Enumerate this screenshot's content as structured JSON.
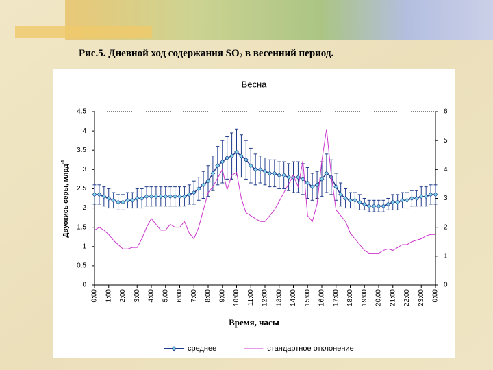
{
  "slide_title": {
    "before": "Рис.5. Дневной ход содержания SO",
    "subscript": "2",
    "after": " в весенний период."
  },
  "chart_data": {
    "type": "line",
    "title": "Весна",
    "xlabel": "Время, часы",
    "ylabel": "Двуокись серы, млрд",
    "ylabel_superscript": "-1",
    "categories": [
      "0:00",
      null,
      null,
      "1:00",
      null,
      null,
      "2:00",
      null,
      null,
      "3:00",
      null,
      null,
      "4:00",
      null,
      null,
      "5:00",
      null,
      null,
      "6:00",
      null,
      null,
      "7:00",
      null,
      null,
      "8:00",
      null,
      null,
      "9:00",
      null,
      null,
      "10:00",
      null,
      null,
      "11:00",
      null,
      null,
      "12:00",
      null,
      null,
      "13:00",
      null,
      null,
      "14:00",
      null,
      null,
      "15:00",
      null,
      null,
      "16:00",
      null,
      null,
      "17:00",
      null,
      null,
      "18:00",
      null,
      null,
      "19:00",
      null,
      null,
      "20:00",
      null,
      null,
      "21:00",
      null,
      null,
      "22:00",
      null,
      null,
      "23:00",
      null,
      null,
      "0:00"
    ],
    "series": [
      {
        "name": "среднее",
        "color": "#1f3b8c",
        "marker_color": "#7fd3e8",
        "values": [
          2.35,
          2.35,
          2.3,
          2.25,
          2.2,
          2.15,
          2.15,
          2.2,
          2.2,
          2.25,
          2.25,
          2.3,
          2.3,
          2.3,
          2.3,
          2.3,
          2.3,
          2.3,
          2.3,
          2.3,
          2.35,
          2.4,
          2.5,
          2.6,
          2.7,
          2.9,
          3.1,
          3.2,
          3.3,
          3.35,
          3.45,
          3.35,
          3.25,
          3.1,
          3.0,
          3.0,
          2.95,
          2.9,
          2.9,
          2.85,
          2.85,
          2.8,
          2.8,
          2.8,
          2.75,
          2.65,
          2.55,
          2.6,
          2.75,
          2.9,
          2.8,
          2.55,
          2.35,
          2.25,
          2.2,
          2.2,
          2.15,
          2.1,
          2.05,
          2.05,
          2.05,
          2.05,
          2.1,
          2.15,
          2.15,
          2.2,
          2.2,
          2.25,
          2.25,
          2.3,
          2.3,
          2.35,
          2.35
        ],
        "errors": [
          0.25,
          0.25,
          0.25,
          0.25,
          0.2,
          0.2,
          0.2,
          0.2,
          0.2,
          0.25,
          0.25,
          0.25,
          0.25,
          0.25,
          0.25,
          0.25,
          0.25,
          0.25,
          0.25,
          0.25,
          0.25,
          0.3,
          0.3,
          0.35,
          0.4,
          0.45,
          0.5,
          0.55,
          0.55,
          0.6,
          0.6,
          0.55,
          0.5,
          0.45,
          0.4,
          0.35,
          0.35,
          0.35,
          0.35,
          0.35,
          0.35,
          0.35,
          0.4,
          0.4,
          0.4,
          0.4,
          0.35,
          0.35,
          0.45,
          0.5,
          0.45,
          0.35,
          0.3,
          0.25,
          0.2,
          0.2,
          0.2,
          0.15,
          0.15,
          0.15,
          0.15,
          0.15,
          0.15,
          0.2,
          0.2,
          0.2,
          0.2,
          0.2,
          0.2,
          0.25,
          0.25,
          0.25,
          0.25
        ]
      },
      {
        "name": "стандартное отклонение",
        "color": "#cc33cc",
        "axis": "y2",
        "values": [
          1.9,
          2.0,
          1.9,
          1.75,
          1.55,
          1.4,
          1.25,
          1.25,
          1.3,
          1.3,
          1.6,
          2.0,
          2.3,
          2.1,
          1.9,
          1.9,
          2.1,
          2.0,
          2.0,
          2.2,
          1.8,
          1.6,
          2.0,
          2.6,
          3.2,
          3.4,
          3.7,
          4.0,
          3.3,
          3.8,
          3.9,
          3.0,
          2.5,
          2.4,
          2.3,
          2.2,
          2.2,
          2.4,
          2.6,
          2.9,
          3.2,
          3.5,
          3.8,
          3.4,
          4.3,
          2.4,
          2.2,
          2.8,
          4.3,
          5.4,
          3.8,
          2.6,
          2.4,
          2.2,
          1.8,
          1.6,
          1.4,
          1.2,
          1.1,
          1.1,
          1.1,
          1.2,
          1.25,
          1.2,
          1.3,
          1.4,
          1.4,
          1.5,
          1.55,
          1.6,
          1.7,
          1.75,
          1.75
        ]
      }
    ],
    "ylim": [
      0,
      4.5
    ],
    "yticks": [
      0,
      0.5,
      1,
      1.5,
      2,
      2.5,
      3,
      3.5,
      4,
      4.5
    ],
    "y2lim": [
      0,
      6
    ],
    "y2ticks": [
      0,
      1,
      2,
      3,
      4,
      5,
      6
    ],
    "grid": false,
    "legend": "bottom"
  }
}
